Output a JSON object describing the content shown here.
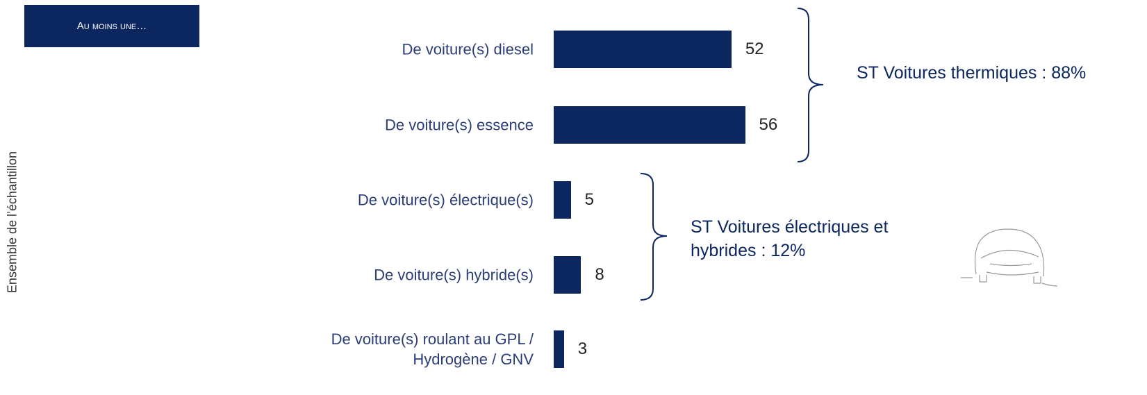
{
  "chart_data": {
    "type": "bar",
    "orientation": "horizontal",
    "header": "Au moins une…",
    "axis_label": "Ensemble de l’échantillon",
    "categories": [
      "De voiture(s) diesel",
      "De voiture(s) essence",
      "De voiture(s) électrique(s)",
      "De voiture(s) hybride(s)",
      "De voiture(s) roulant au GPL / Hydrogène / GNV"
    ],
    "values": [
      52,
      56,
      5,
      8,
      3
    ],
    "color": "#0c2660",
    "annotations": [
      "ST Voitures thermiques : 88%",
      "ST Voitures électriques et hybrides : 12%"
    ]
  }
}
